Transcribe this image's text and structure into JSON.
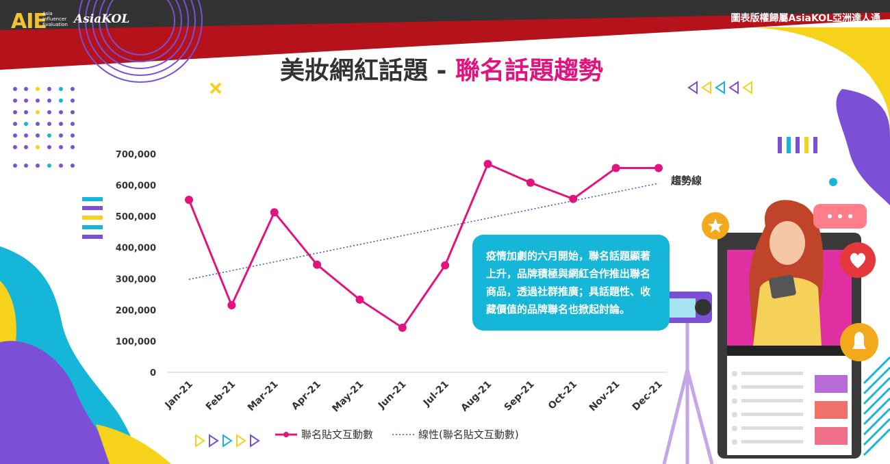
{
  "header": {
    "logo_text": "AIE",
    "logo_subtext_lines": [
      "Asia",
      "Influencer",
      "Evaluation"
    ],
    "brand_name": "AsiaKOL",
    "copyright": "圖表版權歸屬AsiaKOL亞洲達人通"
  },
  "title": {
    "part1": "美妝網紅話題 - ",
    "part2": "聯名話題趨勢"
  },
  "callout": {
    "text": "疫情加劇的六月開始，聯名話題顯著上升，品牌積極與網紅合作推出聯名商品，透過社群推廣；具話題性、收藏價值的品牌聯名也掀起討論。"
  },
  "trend_label": "趨勢線",
  "colors": {
    "series": "#e2137e",
    "trend": "#3b5bbf",
    "callout_bg": "#16b6d8",
    "header_red": "#b5121b",
    "accent_purple": "#7b4fd6",
    "accent_yellow": "#f7d21a",
    "accent_cyan": "#16b6d8"
  },
  "chart_data": {
    "type": "line",
    "categories": [
      "Jan-21",
      "Feb-21",
      "Mar-21",
      "Apr-21",
      "May-21",
      "Jun-21",
      "Jul-21",
      "Aug-21",
      "Sep-21",
      "Oct-21",
      "Nov-21",
      "Dec-21"
    ],
    "series": [
      {
        "name": "聯名貼文互動數",
        "values": [
          553000,
          215000,
          513000,
          345000,
          233000,
          143000,
          343000,
          668000,
          608000,
          556000,
          655000,
          655000
        ]
      },
      {
        "name": "線性(聯名貼文互動數)",
        "style": "dotted",
        "values": [
          298000,
          326000,
          354000,
          382000,
          410000,
          438000,
          466000,
          494000,
          522000,
          550000,
          578000,
          606000
        ]
      }
    ],
    "y_ticks": [
      "0",
      "100,000",
      "200,000",
      "300,000",
      "400,000",
      "500,000",
      "600,000",
      "700,000"
    ],
    "ylim": [
      0,
      700000
    ],
    "grid": false,
    "legend_position": "bottom",
    "title": "",
    "xlabel": "",
    "ylabel": ""
  }
}
